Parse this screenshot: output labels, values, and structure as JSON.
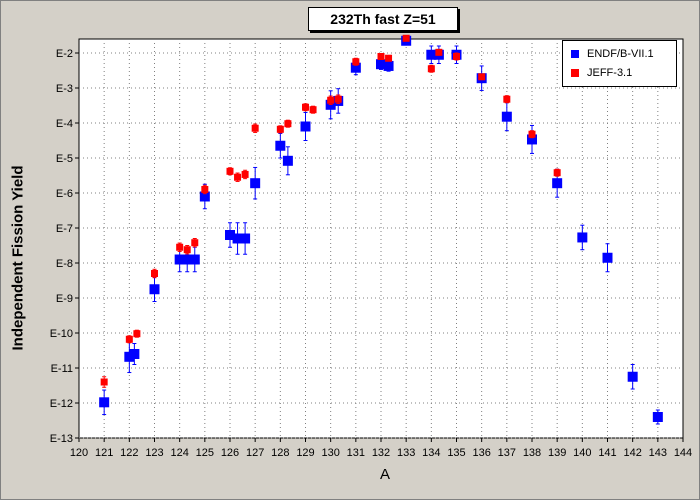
{
  "chart_data": {
    "type": "scatter",
    "title": "232Th fast Z=51",
    "xlabel": "A",
    "ylabel": "Independent Fission Yield",
    "xlim": [
      120,
      144
    ],
    "ylim_exp": [
      -13,
      -1.6
    ],
    "y_scale": "log",
    "x_ticks": [
      "120",
      "121",
      "122",
      "123",
      "124",
      "125",
      "126",
      "127",
      "128",
      "129",
      "130",
      "131",
      "132",
      "133",
      "134",
      "135",
      "136",
      "137",
      "138",
      "139",
      "140",
      "141",
      "142",
      "143",
      "144"
    ],
    "y_ticks": [
      "E-2",
      "E-3",
      "E-4",
      "E-5",
      "E-6",
      "E-7",
      "E-8",
      "E-9",
      "E-10",
      "E-11",
      "E-12",
      "E-13"
    ],
    "grid": true,
    "legend_position": "top-right",
    "series": [
      {
        "name": "ENDF/B-VII.1",
        "color": "#0000ff",
        "marker": "square",
        "points": [
          {
            "x": 121,
            "y_exp": -11.98,
            "err": 0.35
          },
          {
            "x": 122,
            "y_exp": -10.68,
            "err": 0.45
          },
          {
            "x": 122.2,
            "y_exp": -10.6,
            "err": 0.3
          },
          {
            "x": 123,
            "y_exp": -8.75,
            "err": 0.35
          },
          {
            "x": 124,
            "y_exp": -7.9,
            "err": 0.35
          },
          {
            "x": 124.3,
            "y_exp": -7.9,
            "err": 0.35
          },
          {
            "x": 124.6,
            "y_exp": -7.9,
            "err": 0.35
          },
          {
            "x": 125,
            "y_exp": -6.1,
            "err": 0.35
          },
          {
            "x": 126,
            "y_exp": -7.2,
            "err": 0.35
          },
          {
            "x": 126.3,
            "y_exp": -7.3,
            "err": 0.45
          },
          {
            "x": 126.6,
            "y_exp": -7.3,
            "err": 0.45
          },
          {
            "x": 127,
            "y_exp": -5.72,
            "err": 0.45
          },
          {
            "x": 128,
            "y_exp": -4.65,
            "err": 0.35
          },
          {
            "x": 128.3,
            "y_exp": -5.08,
            "err": 0.4
          },
          {
            "x": 129,
            "y_exp": -4.1,
            "err": 0.4
          },
          {
            "x": 130,
            "y_exp": -3.48,
            "err": 0.4
          },
          {
            "x": 130.3,
            "y_exp": -3.37,
            "err": 0.35
          },
          {
            "x": 131,
            "y_exp": -2.42,
            "err": 0.2
          },
          {
            "x": 132,
            "y_exp": -2.32,
            "err": 0.15
          },
          {
            "x": 132.3,
            "y_exp": -2.37,
            "err": 0.15
          },
          {
            "x": 133,
            "y_exp": -1.65,
            "err": 0.1
          },
          {
            "x": 134,
            "y_exp": -2.05,
            "err": 0.25
          },
          {
            "x": 134.3,
            "y_exp": -2.05,
            "err": 0.25
          },
          {
            "x": 135,
            "y_exp": -2.05,
            "err": 0.25
          },
          {
            "x": 136,
            "y_exp": -2.72,
            "err": 0.35
          },
          {
            "x": 137,
            "y_exp": -3.82,
            "err": 0.4
          },
          {
            "x": 138,
            "y_exp": -4.47,
            "err": 0.4
          },
          {
            "x": 139,
            "y_exp": -5.72,
            "err": 0.4
          },
          {
            "x": 140,
            "y_exp": -7.27,
            "err": 0.35
          },
          {
            "x": 141,
            "y_exp": -7.85,
            "err": 0.4
          },
          {
            "x": 142,
            "y_exp": -11.25,
            "err": 0.35
          },
          {
            "x": 143,
            "y_exp": -12.4,
            "err": 0.2
          }
        ]
      },
      {
        "name": "JEFF-3.1",
        "color": "#ff0000",
        "marker": "square",
        "points": [
          {
            "x": 121,
            "y_exp": -11.4,
            "err": 0.15
          },
          {
            "x": 122,
            "y_exp": -10.18,
            "err": 0.1
          },
          {
            "x": 122.3,
            "y_exp": -10.02,
            "err": 0.1
          },
          {
            "x": 123,
            "y_exp": -8.3,
            "err": 0.12
          },
          {
            "x": 124,
            "y_exp": -7.55,
            "err": 0.12
          },
          {
            "x": 124.3,
            "y_exp": -7.62,
            "err": 0.12
          },
          {
            "x": 124.6,
            "y_exp": -7.42,
            "err": 0.12
          },
          {
            "x": 125,
            "y_exp": -5.9,
            "err": 0.12
          },
          {
            "x": 126,
            "y_exp": -5.38,
            "err": 0.1
          },
          {
            "x": 126.3,
            "y_exp": -5.55,
            "err": 0.12
          },
          {
            "x": 126.6,
            "y_exp": -5.47,
            "err": 0.12
          },
          {
            "x": 127,
            "y_exp": -4.15,
            "err": 0.12
          },
          {
            "x": 128,
            "y_exp": -4.18,
            "err": 0.1
          },
          {
            "x": 128.3,
            "y_exp": -4.02,
            "err": 0.1
          },
          {
            "x": 129,
            "y_exp": -3.55,
            "err": 0.1
          },
          {
            "x": 129.3,
            "y_exp": -3.62,
            "err": 0.1
          },
          {
            "x": 130,
            "y_exp": -3.35,
            "err": 0.12
          },
          {
            "x": 130.3,
            "y_exp": -3.32,
            "err": 0.12
          },
          {
            "x": 131,
            "y_exp": -2.25,
            "err": 0.1
          },
          {
            "x": 132,
            "y_exp": -2.1,
            "err": 0.08
          },
          {
            "x": 132.3,
            "y_exp": -2.15,
            "err": 0.08
          },
          {
            "x": 133,
            "y_exp": -1.58,
            "err": 0.05
          },
          {
            "x": 134,
            "y_exp": -2.45,
            "err": 0.1
          },
          {
            "x": 134.3,
            "y_exp": -1.98,
            "err": 0.08
          },
          {
            "x": 135,
            "y_exp": -2.1,
            "err": 0.1
          },
          {
            "x": 136,
            "y_exp": -2.68,
            "err": 0.08
          },
          {
            "x": 137,
            "y_exp": -3.32,
            "err": 0.1
          },
          {
            "x": 138,
            "y_exp": -4.32,
            "err": 0.1
          },
          {
            "x": 139,
            "y_exp": -5.42,
            "err": 0.1
          }
        ]
      }
    ]
  }
}
